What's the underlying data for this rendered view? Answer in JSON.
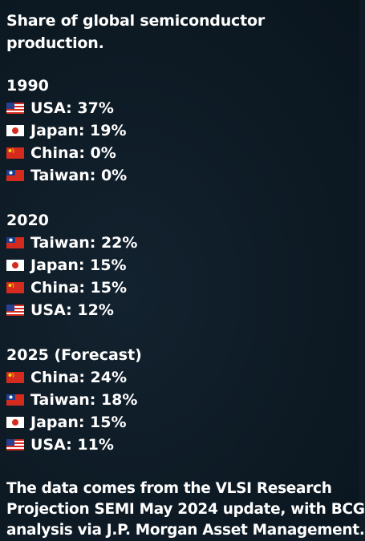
{
  "title": "Share of global semiconductor production.",
  "sections": [
    {
      "heading": "1990",
      "items": [
        {
          "flag": "usa-flag-icon",
          "text": "USA: 37%"
        },
        {
          "flag": "japan-flag-icon",
          "text": "Japan: 19%"
        },
        {
          "flag": "china-flag-icon",
          "text": "China: 0%"
        },
        {
          "flag": "taiwan-flag-icon",
          "text": "Taiwan: 0%"
        }
      ]
    },
    {
      "heading": "2020",
      "items": [
        {
          "flag": "taiwan-flag-icon",
          "text": "Taiwan: 22%"
        },
        {
          "flag": "japan-flag-icon",
          "text": "Japan: 15%"
        },
        {
          "flag": "china-flag-icon",
          "text": "China: 15%"
        },
        {
          "flag": "usa-flag-icon",
          "text": "USA: 12%"
        }
      ]
    },
    {
      "heading": "2025 (Forecast)",
      "items": [
        {
          "flag": "china-flag-icon",
          "text": "China: 24%"
        },
        {
          "flag": "taiwan-flag-icon",
          "text": "Taiwan: 18%"
        },
        {
          "flag": "japan-flag-icon",
          "text": "Japan: 15%"
        },
        {
          "flag": "usa-flag-icon",
          "text": "USA: 11%"
        }
      ]
    }
  ],
  "footer": {
    "line1": "The data comes from the VLSI Research",
    "line2": "Projection SEMI May 2024 update, with BCG",
    "line3": "analysis via J.P. Morgan Asset Management."
  },
  "colors": {
    "background": "#0f1c27",
    "text": "#ffffff",
    "flag_red": "#d52b1e",
    "flag_blue": "#1d3f8f",
    "flag_yellow": "#ffde00"
  }
}
